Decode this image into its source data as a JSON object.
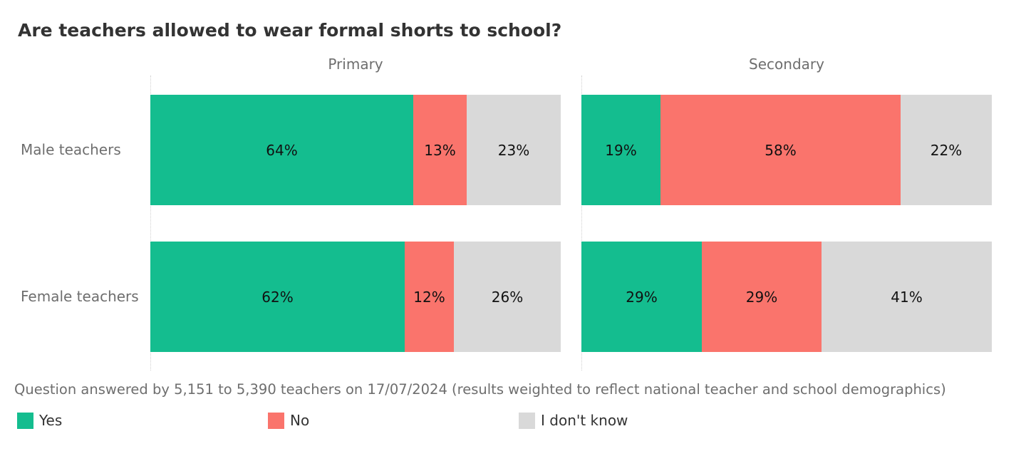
{
  "chart_data": {
    "type": "bar",
    "orientation": "horizontal",
    "stacked": true,
    "title": "Are teachers allowed to wear formal shorts to school?",
    "panels": [
      "Primary",
      "Secondary"
    ],
    "categories": [
      "Male teachers",
      "Female teachers"
    ],
    "series": [
      {
        "name": "Yes",
        "color": "#14bd8f"
      },
      {
        "name": "No",
        "color": "#fa746c"
      },
      {
        "name": "I don't know",
        "color": "#d9d9d9"
      }
    ],
    "values": {
      "Primary": {
        "Male teachers": [
          64,
          13,
          23
        ],
        "Female teachers": [
          62,
          12,
          26
        ]
      },
      "Secondary": {
        "Male teachers": [
          19,
          58,
          22
        ],
        "Female teachers": [
          29,
          29,
          41
        ]
      }
    },
    "labels": {
      "Primary": {
        "Male teachers": [
          "64%",
          "13%",
          "23%"
        ],
        "Female teachers": [
          "62%",
          "12%",
          "26%"
        ]
      },
      "Secondary": {
        "Male teachers": [
          "19%",
          "58%",
          "22%"
        ],
        "Female teachers": [
          "29%",
          "29%",
          "41%"
        ]
      }
    },
    "footnote": "Question answered by 5,151 to 5,390 teachers on 17/07/2024 (results weighted to reflect national teacher and school demographics)",
    "legend_position": "bottom"
  }
}
